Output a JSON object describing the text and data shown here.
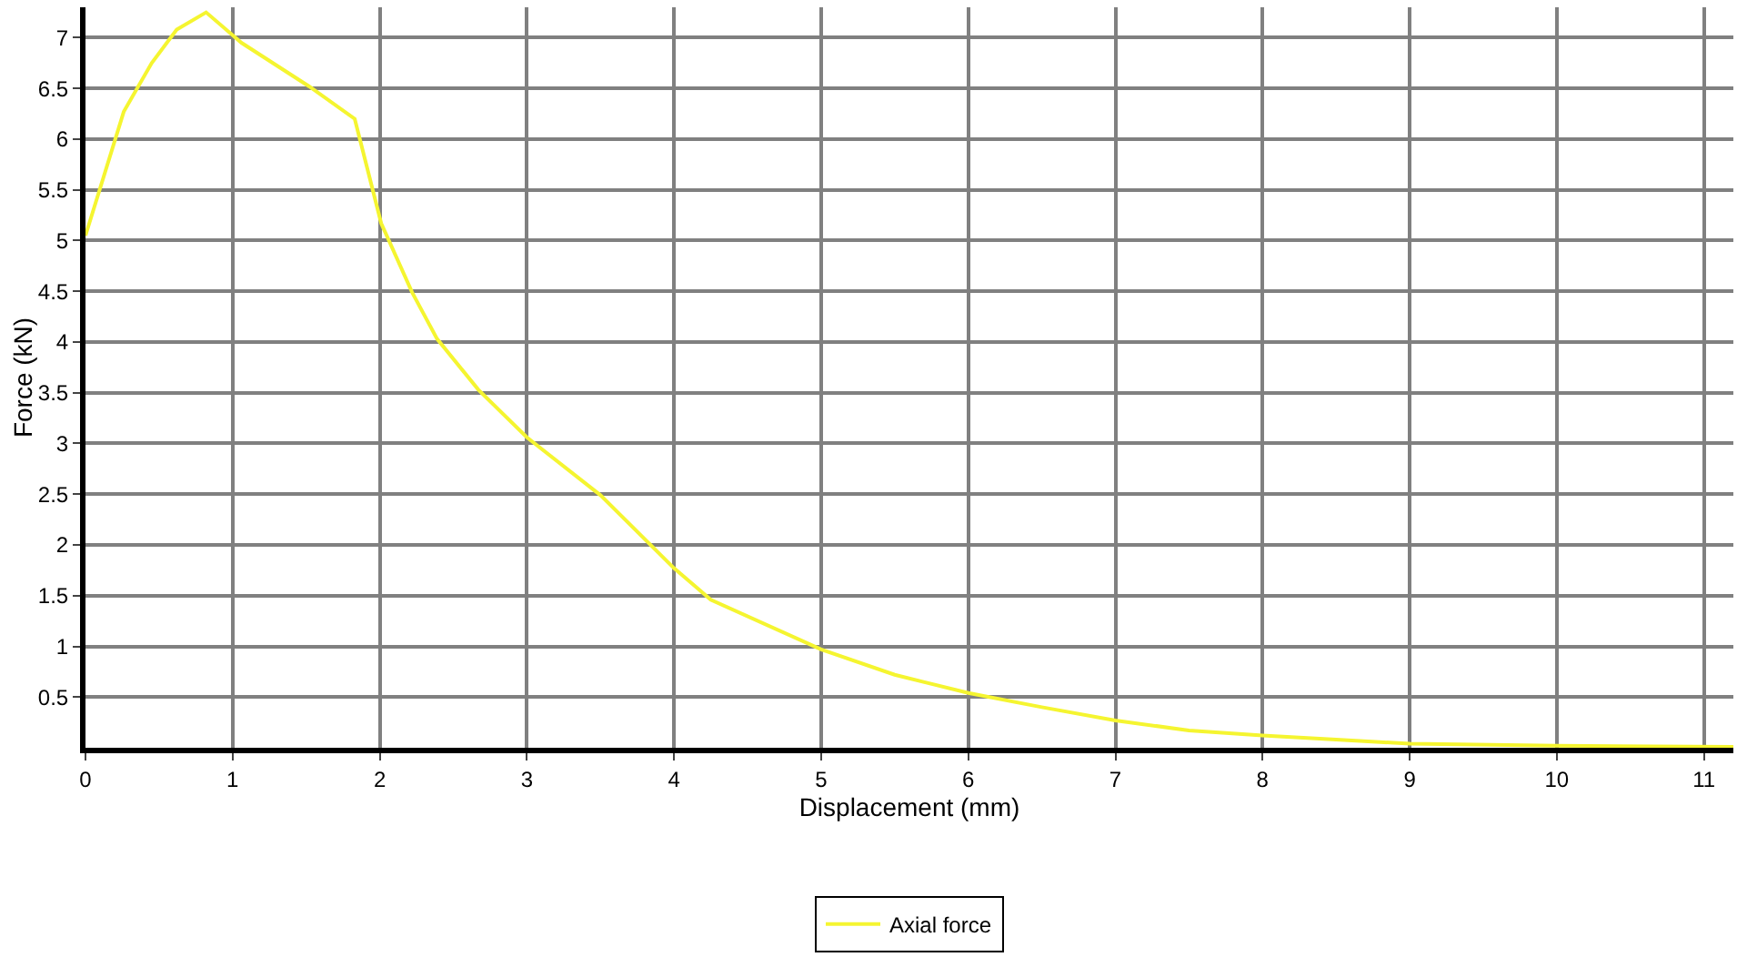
{
  "chart_data": {
    "type": "line",
    "xlabel": "Displacement (mm)",
    "ylabel": "Force (kN)",
    "xlim": [
      0,
      11.2
    ],
    "xticks": [
      0,
      1,
      2,
      3,
      4,
      5,
      6,
      7,
      8,
      9,
      10,
      11
    ],
    "ylim": [
      0,
      7.3
    ],
    "yticks": [
      0.5,
      1,
      1.5,
      2,
      2.5,
      3,
      3.5,
      4,
      4.5,
      5,
      5.5,
      6,
      6.5,
      7
    ],
    "grid": true,
    "legend": "bottom",
    "marker": "none",
    "line_style": "solid",
    "series": [
      {
        "name": "Axial force",
        "color": "#f5f530",
        "x": [
          0,
          0.26,
          0.45,
          0.62,
          0.82,
          1.06,
          1.52,
          1.83,
          2.01,
          2.22,
          2.39,
          2.67,
          3.0,
          3.5,
          4.0,
          4.25,
          5.0,
          5.5,
          6.0,
          6.5,
          7.0,
          7.5,
          8.0,
          8.5,
          9.0,
          10.0,
          11.2
        ],
        "values": [
          5.05,
          6.27,
          6.75,
          7.08,
          7.25,
          6.95,
          6.52,
          6.2,
          5.17,
          4.49,
          4.03,
          3.53,
          3.06,
          2.49,
          1.77,
          1.46,
          0.97,
          0.72,
          0.54,
          0.4,
          0.27,
          0.17,
          0.12,
          0.08,
          0.04,
          0.02,
          0.01
        ]
      }
    ]
  }
}
